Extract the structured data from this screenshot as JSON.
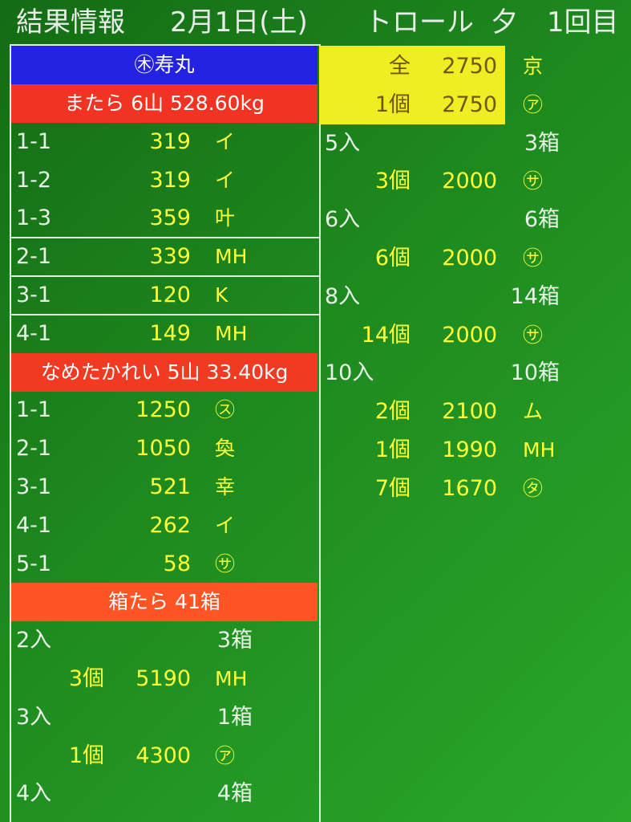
{
  "header": {
    "title": "結果情報",
    "date": "2月1日(土)",
    "method": "トロール",
    "session": "夕",
    "round": "1回目"
  },
  "left": {
    "ship": "㊍寿丸",
    "lots": [
      {
        "title": "またら 6山 528.60kg",
        "rows": [
          {
            "code": "1-1",
            "price": 319,
            "buyer": "イ"
          },
          {
            "code": "1-2",
            "price": 319,
            "buyer": "イ"
          },
          {
            "code": "1-3",
            "price": 359,
            "buyer": "叶"
          },
          {
            "code": "2-1",
            "price": 339,
            "buyer": "MH"
          },
          {
            "code": "3-1",
            "price": 120,
            "buyer": "K"
          },
          {
            "code": "4-1",
            "price": 149,
            "buyer": "MH"
          }
        ]
      },
      {
        "title": "なめたかれい 5山 33.40kg",
        "rows": [
          {
            "code": "1-1",
            "price": 1250,
            "buyer": "㋜"
          },
          {
            "code": "2-1",
            "price": 1050,
            "buyer": "奐"
          },
          {
            "code": "3-1",
            "price": 521,
            "buyer": "幸"
          },
          {
            "code": "4-1",
            "price": 262,
            "buyer": "イ"
          },
          {
            "code": "5-1",
            "price": 58,
            "buyer": "㋚"
          }
        ]
      }
    ],
    "boxes": {
      "title": "箱たら 41箱",
      "groups": [
        {
          "size": "2入",
          "count": "3箱",
          "sales": [
            {
              "qty": "3個",
              "price": 5190,
              "buyer": "MH"
            }
          ]
        },
        {
          "size": "3入",
          "count": "1箱",
          "sales": [
            {
              "qty": "1個",
              "price": 4300,
              "buyer": "㋐"
            }
          ]
        },
        {
          "size": "4入",
          "count": "4箱",
          "sales": []
        }
      ]
    }
  },
  "right": {
    "totals": [
      {
        "qty": "全",
        "price": 2750,
        "buyer": "京"
      },
      {
        "qty": "1個",
        "price": 2750,
        "buyer": "㋐"
      }
    ],
    "groups": [
      {
        "size": "5入",
        "count": "3箱",
        "sales": [
          {
            "qty": "3個",
            "price": 2000,
            "buyer": "㋚"
          }
        ]
      },
      {
        "size": "6入",
        "count": "6箱",
        "sales": [
          {
            "qty": "6個",
            "price": 2000,
            "buyer": "㋚"
          }
        ]
      },
      {
        "size": "8入",
        "count": "14箱",
        "sales": [
          {
            "qty": "14個",
            "price": 2000,
            "buyer": "㋚"
          }
        ]
      },
      {
        "size": "10入",
        "count": "10箱",
        "sales": [
          {
            "qty": "2個",
            "price": 2100,
            "buyer": "ム"
          },
          {
            "qty": "1個",
            "price": 1990,
            "buyer": "MH"
          },
          {
            "qty": "7個",
            "price": 1670,
            "buyer": "㋟"
          }
        ]
      }
    ]
  }
}
